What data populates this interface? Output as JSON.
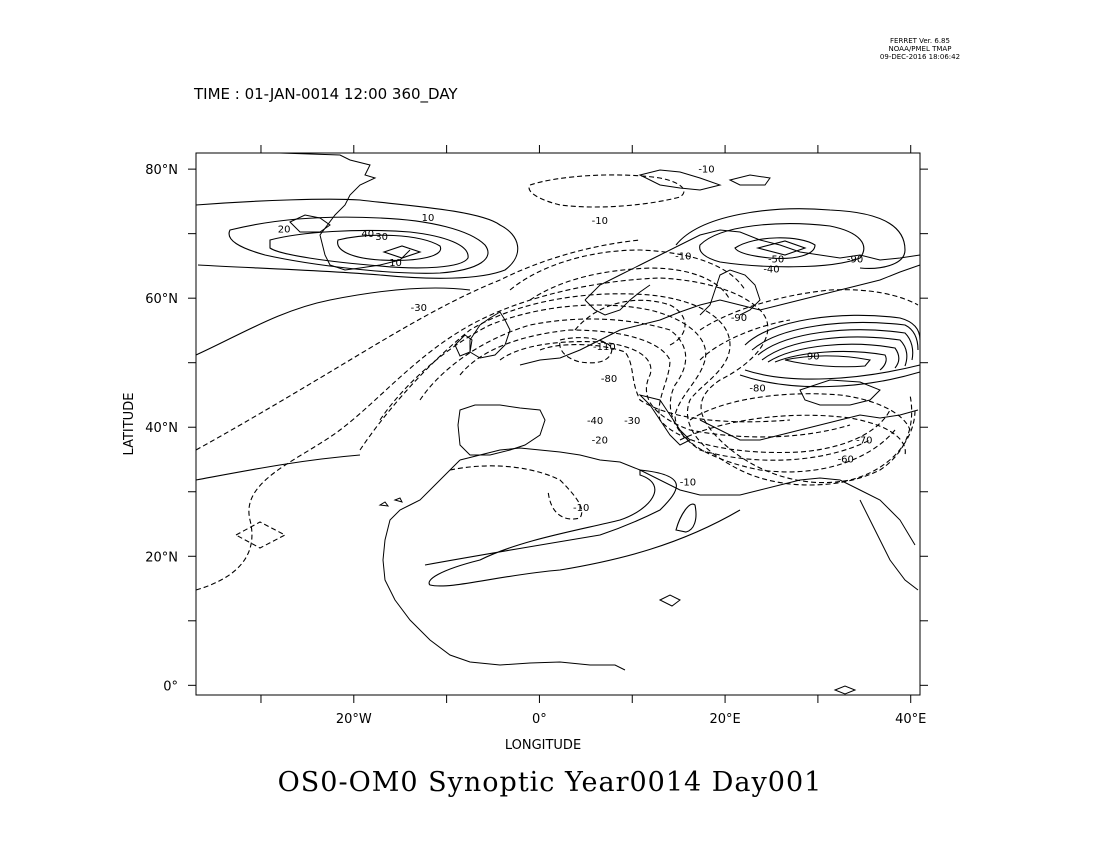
{
  "stamp": {
    "line1": "FERRET Ver. 6.85",
    "line2": "NOAA/PMEL TMAP",
    "line3": "09-DEC-2016 18:06:42"
  },
  "time_label": "TIME : 01-JAN-0014 12:00 360_DAY",
  "title": "OS0-OM0 Synoptic Year0014 Day001",
  "map": {
    "lon_range": [
      -37,
      41
    ],
    "lat_range": [
      -1.5,
      82.5
    ],
    "x_axis": {
      "label": "LONGITUDE",
      "ticks": [
        {
          "value": -20,
          "label": "20°W"
        },
        {
          "value": 0,
          "label": "0°"
        },
        {
          "value": 20,
          "label": "20°E"
        },
        {
          "value": 40,
          "label": "40°E"
        }
      ],
      "minor_ticks": [
        -30,
        -10,
        10,
        30
      ]
    },
    "y_axis": {
      "label": "LATITUDE",
      "ticks": [
        {
          "value": 0,
          "label": "0°"
        },
        {
          "value": 20,
          "label": "20°N"
        },
        {
          "value": 40,
          "label": "40°N"
        },
        {
          "value": 60,
          "label": "60°N"
        },
        {
          "value": 80,
          "label": "80°N"
        }
      ],
      "minor_ticks": [
        10,
        30,
        50,
        70
      ]
    },
    "contour_labels": [
      {
        "text": "20",
        "lon": -27.5,
        "lat": 70.2
      },
      {
        "text": "40",
        "lon": -18.5,
        "lat": 69.5
      },
      {
        "text": "30",
        "lon": -17.0,
        "lat": 69.0
      },
      {
        "text": "10",
        "lon": -15.5,
        "lat": 65.0
      },
      {
        "text": "10",
        "lon": -12.0,
        "lat": 72.0
      },
      {
        "text": "-10",
        "lon": 6.5,
        "lat": 71.5
      },
      {
        "text": "-10",
        "lon": 18.0,
        "lat": 79.5
      },
      {
        "text": "-10",
        "lon": 15.5,
        "lat": 66.0
      },
      {
        "text": "-50",
        "lon": 25.5,
        "lat": 65.5
      },
      {
        "text": "-40",
        "lon": 25.0,
        "lat": 64.0
      },
      {
        "text": "-90",
        "lon": 34.0,
        "lat": 65.5
      },
      {
        "text": "-30",
        "lon": -13.0,
        "lat": 58.0
      },
      {
        "text": "-110",
        "lon": 7.0,
        "lat": 52.0
      },
      {
        "text": "-80",
        "lon": 7.5,
        "lat": 47.0
      },
      {
        "text": "-40",
        "lon": 6.0,
        "lat": 40.5
      },
      {
        "text": "-30",
        "lon": 10.0,
        "lat": 40.5
      },
      {
        "text": "-20",
        "lon": 6.5,
        "lat": 37.5
      },
      {
        "text": "-10",
        "lon": 4.5,
        "lat": 27.0
      },
      {
        "text": "-10",
        "lon": 16.0,
        "lat": 31.0
      },
      {
        "text": "-90",
        "lon": 21.5,
        "lat": 56.5
      },
      {
        "text": "-80",
        "lon": 23.5,
        "lat": 45.5
      },
      {
        "text": "90",
        "lon": 29.5,
        "lat": 50.5
      },
      {
        "text": "-60",
        "lon": 33.0,
        "lat": 34.5
      },
      {
        "text": "-70",
        "lon": 35.0,
        "lat": 37.5
      }
    ]
  }
}
